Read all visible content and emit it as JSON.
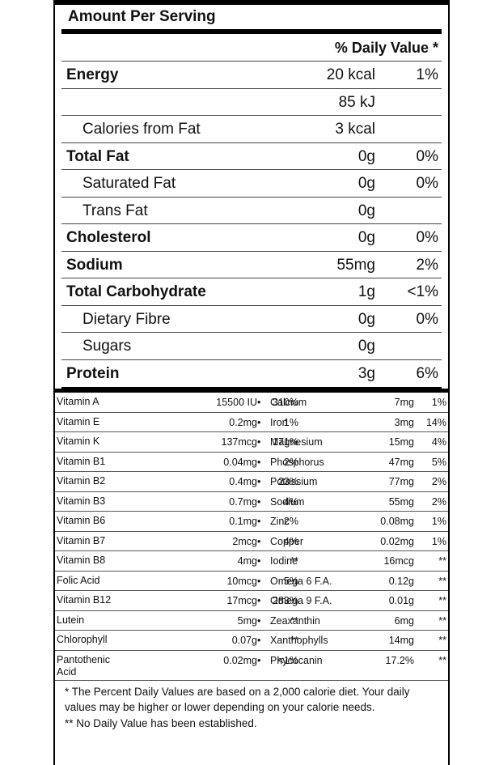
{
  "header": {
    "amount_per_serving": "Amount Per Serving",
    "daily_value": "% Daily Value *"
  },
  "nutrients": [
    {
      "name": "Energy",
      "amount": "20 kcal",
      "dv": "1%"
    },
    {
      "name": "",
      "amount": "85 kJ",
      "dv": ""
    },
    {
      "name": "Calories from Fat",
      "amount": "3 kcal",
      "dv": ""
    },
    {
      "name": "Total Fat",
      "amount": "0g",
      "dv": "0%"
    },
    {
      "name": "Saturated Fat",
      "amount": "0g",
      "dv": "0%"
    },
    {
      "name": "Trans Fat",
      "amount": "0g",
      "dv": ""
    },
    {
      "name": "Cholesterol",
      "amount": "0g",
      "dv": "0%"
    },
    {
      "name": "Sodium",
      "amount": "55mg",
      "dv": "2%"
    },
    {
      "name": "Total Carbohydrate",
      "amount": "1g",
      "dv": "<1%"
    },
    {
      "name": "Dietary Fibre",
      "amount": "0g",
      "dv": "0%"
    },
    {
      "name": "Sugars",
      "amount": "0g",
      "dv": ""
    },
    {
      "name": "Protein",
      "amount": "3g",
      "dv": "6%"
    }
  ],
  "vitamins": [
    {
      "left_name": "Vitamin A",
      "left_amount": "15500 IU",
      "left_dv": "310%",
      "bullet": "•",
      "right_name": "Calcium",
      "right_amount": "7mg",
      "right_dv": "1%"
    },
    {
      "left_name": "Vitamin E",
      "left_amount": "0.2mg",
      "left_dv": "1%",
      "bullet": "•",
      "right_name": "Iron",
      "right_amount": "3mg",
      "right_dv": "14%"
    },
    {
      "left_name": "Vitamin K",
      "left_amount": "137mcg",
      "left_dv": "171%",
      "bullet": "•",
      "right_name": "Magnesium",
      "right_amount": "15mg",
      "right_dv": "4%"
    },
    {
      "left_name": "Vitamin B1",
      "left_amount": "0.04mg",
      "left_dv": "2%",
      "bullet": "•",
      "right_name": "Phosphorus",
      "right_amount": "47mg",
      "right_dv": "5%"
    },
    {
      "left_name": "Vitamin B2",
      "left_amount": "0.4mg",
      "left_dv": "23%",
      "bullet": "•",
      "right_name": "Potassium",
      "right_amount": "77mg",
      "right_dv": "2%"
    },
    {
      "left_name": "Vitamin B3",
      "left_amount": "0.7mg",
      "left_dv": "4%",
      "bullet": "•",
      "right_name": "Sodium",
      "right_amount": "55mg",
      "right_dv": "2%"
    },
    {
      "left_name": "Vitamin B6",
      "left_amount": "0.1mg",
      "left_dv": "2%",
      "bullet": "•",
      "right_name": "Zinc",
      "right_amount": "0.08mg",
      "right_dv": "1%"
    },
    {
      "left_name": "Vitamin B7",
      "left_amount": "2mcg",
      "left_dv": "4%",
      "bullet": "•",
      "right_name": "Copper",
      "right_amount": "0.02mg",
      "right_dv": "1%"
    },
    {
      "left_name": "Vitamin B8",
      "left_amount": "4mg",
      "left_dv": "**",
      "bullet": "•",
      "right_name": "Iodine",
      "right_amount": "16mcg",
      "right_dv": "**"
    },
    {
      "left_name": "Folic Acid",
      "left_amount": "10mcg",
      "left_dv": "5%",
      "bullet": "•",
      "right_name": "Omega 6 F.A.",
      "right_amount": "0.12g",
      "right_dv": "**"
    },
    {
      "left_name": "Vitamin B12",
      "left_amount": "17mcg",
      "left_dv": "283%",
      "bullet": "•",
      "right_name": "Omega 9 F.A.",
      "right_amount": "0.01g",
      "right_dv": "**"
    },
    {
      "left_name": "Lutein",
      "left_amount": "5mg",
      "left_dv": "**",
      "bullet": "•",
      "right_name": "Zeaxanthin",
      "right_amount": "6mg",
      "right_dv": "**"
    },
    {
      "left_name": "Chlorophyll",
      "left_amount": "0.07g",
      "left_dv": "**",
      "bullet": "•",
      "right_name": "Xanthophylls",
      "right_amount": "14mg",
      "right_dv": "**"
    },
    {
      "left_name": "Pantothenic Acid",
      "left_amount": "0.02mg",
      "left_dv": "<1%",
      "bullet": "•",
      "right_name": "Phycocanin",
      "right_amount": "17.2%",
      "right_dv": "**"
    }
  ],
  "footnotes": {
    "line1": "* The Percent Daily Values are based on a 2,000 calorie diet. Your daily values may be higher or lower depending on your calorie needs.",
    "line2": "** No Daily Value has been established."
  }
}
